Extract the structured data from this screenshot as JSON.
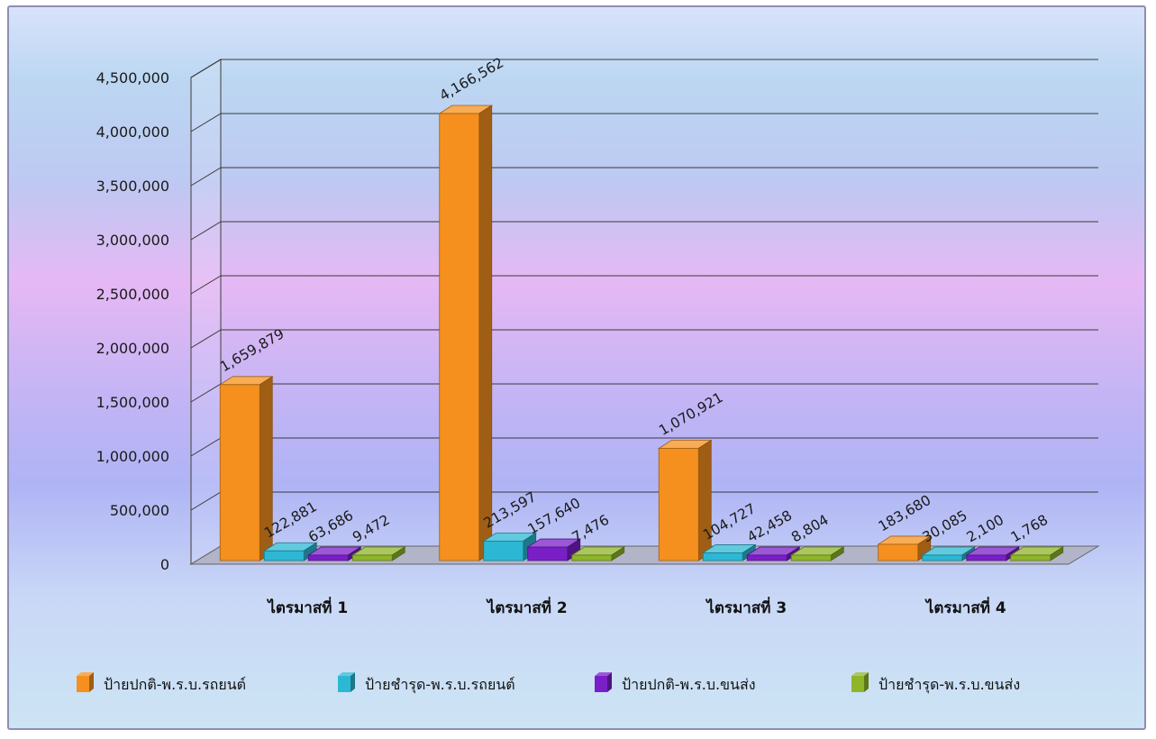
{
  "chart_data": {
    "type": "bar",
    "categories": [
      "ไตรมาสที่ 1",
      "ไตรมาสที่ 2",
      "ไตรมาสที่ 3",
      "ไตรมาสที่ 4"
    ],
    "series": [
      {
        "name": "ป้ายปกติ-พ.ร.บ.รถยนต์",
        "values": [
          1659879,
          4166562,
          1070921,
          183680
        ],
        "labels": [
          "1,659,879",
          "4,166,562",
          "1,070,921",
          "183,680"
        ]
      },
      {
        "name": "ป้ายชำรุด-พ.ร.บ.รถยนต์",
        "values": [
          122881,
          213597,
          104727,
          30085
        ],
        "labels": [
          "122,881",
          "213,597",
          "104,727",
          "30,085"
        ]
      },
      {
        "name": "ป้ายปกติ-พ.ร.บ.ขนส่ง",
        "values": [
          63686,
          157640,
          42458,
          2100
        ],
        "labels": [
          "63,686",
          "157,640",
          "42,458",
          "2,100"
        ]
      },
      {
        "name": "ป้ายชำรุด-พ.ร.บ.ขนส่ง",
        "values": [
          9472,
          7476,
          8804,
          1768
        ],
        "labels": [
          "9,472",
          "7,476",
          "8,804",
          "1,768"
        ]
      }
    ],
    "ylim": [
      0,
      4500000
    ],
    "yticks": [
      0,
      500000,
      1000000,
      1500000,
      2000000,
      2500000,
      3000000,
      3500000,
      4000000,
      4500000
    ],
    "ytick_labels": [
      "0",
      "500,000",
      "1,000,000",
      "1,500,000",
      "2,000,000",
      "2,500,000",
      "3,000,000",
      "3,500,000",
      "4,000,000",
      "4,500,000"
    ],
    "colors": [
      "#f5901e",
      "#2cb8d4",
      "#7a1fc8",
      "#8fb52a"
    ],
    "style": "3d-clustered-column",
    "grid": true,
    "legend": "bottom",
    "title": "",
    "xlabel": "",
    "ylabel": ""
  }
}
